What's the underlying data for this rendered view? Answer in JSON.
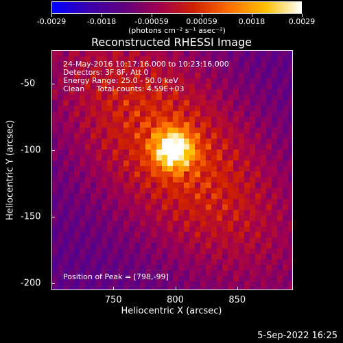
{
  "colorbar": {
    "ticks": [
      "-0.0029",
      "-0.0018",
      "-0.00059",
      "0.00059",
      "0.0018",
      "0.0029"
    ],
    "units": "(photons cm⁻² s⁻¹ asec⁻²)",
    "colormap": [
      "#0000ff",
      "#3a00b0",
      "#600080",
      "#a00050",
      "#d02000",
      "#ff7000",
      "#ffc000",
      "#ffffff"
    ]
  },
  "chart_data": {
    "type": "heatmap",
    "title": "Reconstructed RHESSI Image",
    "xlabel": "Heliocentric X (arcsec)",
    "ylabel": "Heliocentric Y (arcsec)",
    "xlim": [
      700,
      895
    ],
    "ylim": [
      -205,
      -25
    ],
    "xticks": [
      750,
      800,
      850
    ],
    "yticks": [
      -50,
      -100,
      -150,
      -200
    ],
    "xtick_labels": [
      "750",
      "800",
      "850"
    ],
    "ytick_labels": [
      "-50",
      "-100",
      "-150",
      "-200"
    ],
    "value_range": [
      -0.0029,
      0.0029
    ],
    "peak": {
      "x": 798,
      "y": -99
    }
  },
  "annotations": {
    "time": "24-May-2016 10:17:16.000 to 10:23:16.000",
    "detectors": "Detectors: 3F 8F, Att 0",
    "energy": "Energy Range: 25.0 - 50.0 keV",
    "clean": "Clean     Total counts: 4.59E+03",
    "peak_label": "Position of Peak = [798,-99]"
  },
  "footer": {
    "date": "5-Sep-2022 16:25"
  }
}
